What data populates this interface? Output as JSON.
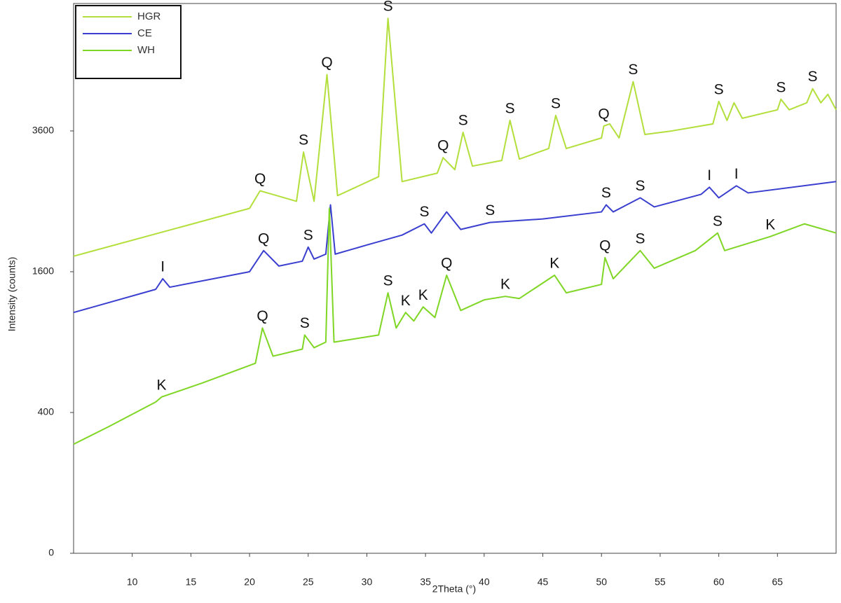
{
  "chart_data": {
    "type": "line",
    "yscale": "sqrt",
    "xlabel": "2Theta (°)",
    "ylabel": "Intensity (counts)",
    "xlim": [
      5,
      70
    ],
    "xticks": [
      10,
      15,
      20,
      25,
      30,
      35,
      40,
      45,
      50,
      55,
      60,
      65
    ],
    "ylim": [
      0,
      6100
    ],
    "yticks": [
      0,
      400,
      1600,
      3600
    ],
    "legend": "upper left",
    "series": [
      {
        "name": "HGR",
        "color": "#b3df3c",
        "x": [
          5,
          20,
          20.9,
          24,
          24.6,
          25.5,
          26.6,
          27.5,
          31,
          31.8,
          33,
          36,
          36.5,
          37.5,
          38.2,
          39,
          41.5,
          42.2,
          43,
          45.5,
          46.1,
          47,
          50,
          50.2,
          50.7,
          51.5,
          52.7,
          53.7,
          56,
          59.5,
          60,
          60.7,
          61.3,
          62,
          65,
          65.3,
          66,
          67.5,
          68,
          68.7,
          69.3,
          70
        ],
        "values": [
          1781,
          2401,
          2652,
          2500,
          3249,
          2500,
          4624,
          2581,
          2862,
          5776,
          2788,
          2916,
          3158,
          2970,
          3576,
          3025,
          3114,
          3782,
          3136,
          3306,
          3869,
          3306,
          3481,
          3684,
          3721,
          3481,
          4489,
          3540,
          3600,
          3721,
          4122,
          3782,
          4096,
          3819,
          3969,
          4160,
          3969,
          4096,
          4356,
          4096,
          4251,
          3969
        ],
        "peak_labels": [
          {
            "label": "Q",
            "x": 20.9
          },
          {
            "label": "S",
            "x": 24.6
          },
          {
            "label": "Q",
            "x": 26.6
          },
          {
            "label": "S",
            "x": 31.8
          },
          {
            "label": "Q",
            "x": 36.5
          },
          {
            "label": "S",
            "x": 38.2
          },
          {
            "label": "S",
            "x": 42.2
          },
          {
            "label": "S",
            "x": 46.1
          },
          {
            "label": "Q",
            "x": 50.2
          },
          {
            "label": "S",
            "x": 52.7
          },
          {
            "label": "S",
            "x": 60
          },
          {
            "label": "S",
            "x": 65.3
          },
          {
            "label": "S",
            "x": 68
          }
        ]
      },
      {
        "name": "CE",
        "color": "#3b3fcf",
        "x": [
          5,
          12,
          12.6,
          13.2,
          20,
          21.2,
          22.5,
          24.5,
          25,
          25.5,
          26.5,
          26.9,
          27.3,
          30,
          33,
          34.9,
          35.5,
          36.8,
          38,
          40.5,
          45,
          50,
          50.4,
          51,
          53.3,
          54.5,
          58.5,
          59.2,
          60,
          61.5,
          62.5,
          70
        ],
        "values": [
          1170,
          1406,
          1521,
          1429,
          1600,
          1849,
          1665,
          1722,
          1892,
          1747,
          1806,
          2450,
          1806,
          1918,
          2043,
          2190,
          2070,
          2352,
          2116,
          2209,
          2256,
          2352,
          2450,
          2352,
          2550,
          2421,
          2601,
          2704,
          2550,
          2725,
          2621,
          2788
        ],
        "peak_labels": [
          {
            "label": "I",
            "x": 12.6
          },
          {
            "label": "Q",
            "x": 21.2
          },
          {
            "label": "S",
            "x": 25
          },
          {
            "label": "S",
            "x": 34.9
          },
          {
            "label": "S",
            "x": 40.5
          },
          {
            "label": "S",
            "x": 50.4
          },
          {
            "label": "S",
            "x": 53.3
          },
          {
            "label": "I",
            "x": 59.2
          },
          {
            "label": "I",
            "x": 61.5
          }
        ]
      },
      {
        "name": "WH",
        "color": "#7fd624",
        "x": [
          5,
          8,
          12,
          12.5,
          16,
          20.5,
          21.1,
          22,
          24.5,
          24.7,
          25.5,
          26.5,
          26.8,
          27.2,
          31,
          31.8,
          32.5,
          33.3,
          34,
          34.8,
          35.8,
          36.8,
          38,
          40,
          41.8,
          43,
          46,
          47,
          50,
          50.3,
          51,
          53.3,
          54.5,
          58,
          59.9,
          60.5,
          64.4,
          67.3,
          70
        ],
        "values": [
          240,
          324,
          462,
          493,
          586,
          729,
          1024,
          784,
          841,
          961,
          853,
          900,
          2401,
          900,
          961,
          1369,
          1024,
          1170,
          1089,
          1225,
          1122,
          1560,
          1190,
          1296,
          1332,
          1310,
          1560,
          1369,
          1459,
          1764,
          1521,
          1849,
          1640,
          1849,
          2070,
          1849,
          2025,
          2190,
          2070
        ],
        "peak_labels": [
          {
            "label": "K",
            "x": 12.5
          },
          {
            "label": "Q",
            "x": 21.1
          },
          {
            "label": "S",
            "x": 24.7
          },
          {
            "label": "S",
            "x": 31.8
          },
          {
            "label": "K",
            "x": 33.3
          },
          {
            "label": "K",
            "x": 34.8
          },
          {
            "label": "Q",
            "x": 36.8
          },
          {
            "label": "K",
            "x": 41.8
          },
          {
            "label": "K",
            "x": 46
          },
          {
            "label": "Q",
            "x": 50.3
          },
          {
            "label": "S",
            "x": 53.3
          },
          {
            "label": "S",
            "x": 59.9
          },
          {
            "label": "K",
            "x": 64.4
          }
        ]
      }
    ]
  }
}
